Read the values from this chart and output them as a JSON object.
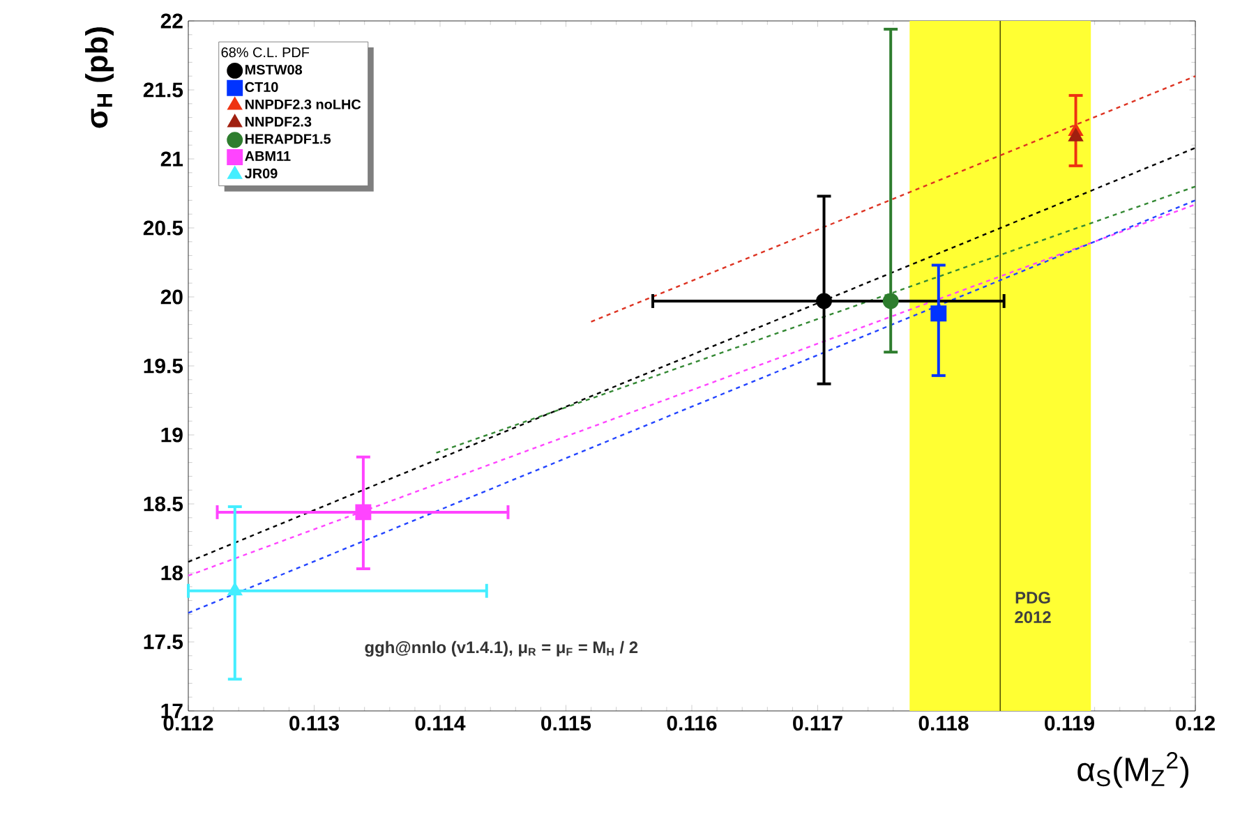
{
  "chart_data": {
    "type": "scatter",
    "xlabel": "α$_{S}$(M$_{Z}$$^{2}$)",
    "ylabel": "σ$_{H}$ (pb)",
    "legend_title": "68% C.L. PDF",
    "xlim": [
      0.112,
      0.12
    ],
    "ylim": [
      17,
      22
    ],
    "xticks": [
      0.112,
      0.113,
      0.114,
      0.115,
      0.116,
      0.117,
      0.118,
      0.119,
      0.12
    ],
    "yticks": [
      17,
      17.5,
      18,
      18.5,
      19,
      19.5,
      20,
      20.5,
      21,
      21.5,
      22
    ],
    "grid": false,
    "legend": "top left",
    "series": [
      {
        "name": "MSTW08",
        "color": "#000000",
        "marker": "circle",
        "x": [
          0.11705
        ],
        "values": [
          19.97
        ],
        "errors": [
          [
            19.37,
            20.73
          ]
        ],
        "xerrors": [
          [
            0.11569,
            0.11848
          ]
        ]
      },
      {
        "name": "CT10",
        "color": "#0033ff",
        "marker": "square",
        "x": [
          0.11796
        ],
        "values": [
          19.88
        ],
        "errors": [
          [
            19.43,
            20.23
          ]
        ]
      },
      {
        "name": "NNPDF2.3 noLHC",
        "color": "#ee3311",
        "marker": "triangle",
        "x": [
          0.11905
        ],
        "values": [
          21.2
        ],
        "errors": [
          [
            20.95,
            21.46
          ]
        ]
      },
      {
        "name": "NNPDF2.3",
        "color": "#a02010",
        "marker": "triangle",
        "x": [
          0.11905
        ],
        "values": [
          21.16
        ]
      },
      {
        "name": "HERAPDF1.5",
        "color": "#2e7d2e",
        "marker": "circle",
        "x": [
          0.11758
        ],
        "values": [
          19.97
        ],
        "errors": [
          [
            19.6,
            21.94
          ]
        ]
      },
      {
        "name": "ABM11",
        "color": "#ff44ff",
        "marker": "square",
        "x": [
          0.11339
        ],
        "values": [
          18.44
        ],
        "errors": [
          [
            18.03,
            18.84
          ]
        ],
        "xerrors": [
          [
            0.11223,
            0.11454
          ]
        ]
      },
      {
        "name": "JR09",
        "color": "#44eeff",
        "marker": "triangle",
        "x": [
          0.11237
        ],
        "values": [
          17.87
        ],
        "errors": [
          [
            17.23,
            18.48
          ]
        ],
        "xerrors": [
          [
            0.112,
            0.11437
          ]
        ]
      },
      {
        "type": "line",
        "color": "#dd3322",
        "line_style": "dashed",
        "x": [
          0.1152,
          0.12
        ],
        "values": [
          19.82,
          21.6
        ]
      },
      {
        "type": "line",
        "color": "#000000",
        "line_style": "dashed",
        "x": [
          0.112,
          0.12
        ],
        "values": [
          18.08,
          21.08
        ]
      },
      {
        "type": "line",
        "color": "#338833",
        "line_style": "dashed",
        "x": [
          0.11397,
          0.12
        ],
        "values": [
          18.87,
          20.8
        ]
      },
      {
        "type": "line",
        "color": "#ff44ff",
        "line_style": "dashed",
        "x": [
          0.112,
          0.12
        ],
        "values": [
          17.98,
          20.67
        ]
      },
      {
        "type": "line",
        "color": "#2244ff",
        "line_style": "dashed",
        "x": [
          0.112,
          0.12
        ],
        "values": [
          17.71,
          20.7
        ]
      }
    ],
    "bands": [
      {
        "axis": "x",
        "from": 0.11773,
        "to": 0.11917,
        "label": "PDG 2012",
        "color": "#ffff33"
      }
    ],
    "ref_lines": [
      {
        "axis": "x",
        "value": 0.11845,
        "color": "#555500"
      }
    ],
    "annotations": [
      "ggh@nnlo (v1.4.1), μ$_{R}$ = μ$_{F}$ = M$_{H}$ / 2"
    ]
  }
}
